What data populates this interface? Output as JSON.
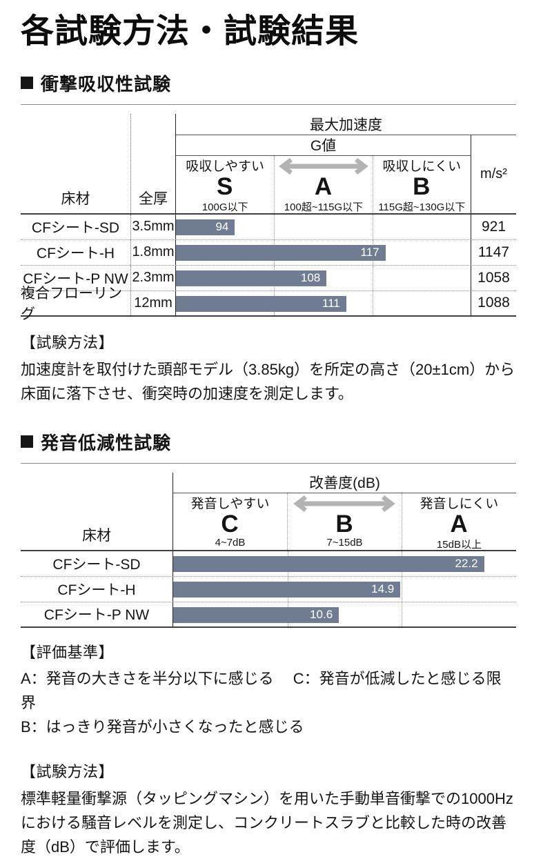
{
  "page": {
    "title": "各試験方法・試験結果"
  },
  "colors": {
    "bar": "#6f7c92",
    "arrow": "#b3b3b3",
    "thick_border": "#3d3d3d"
  },
  "impact": {
    "heading": "衝撃吸収性試験",
    "table": {
      "material_col": "床材",
      "thickness_col": "全厚",
      "group": "最大加速度",
      "subgroup": "G値",
      "unit": "m/s²",
      "zones": [
        {
          "desc": "吸収しやすい",
          "grade": "S",
          "range": "100G以下"
        },
        {
          "desc": "",
          "grade": "A",
          "range": "100超~115G以下"
        },
        {
          "desc": "吸収しにくい",
          "grade": "B",
          "range": "115G超~130G以下"
        }
      ],
      "rows": [
        {
          "material": "CFシート-SD",
          "thickness": "3.5mm",
          "value": 94,
          "ms2": "921"
        },
        {
          "material": "CFシート-H",
          "thickness": "1.8mm",
          "value": 117,
          "ms2": "1147"
        },
        {
          "material": "CFシート-P NW",
          "thickness": "2.3mm",
          "value": 108,
          "ms2": "1058"
        },
        {
          "material": "複合フローリング",
          "thickness": "12mm",
          "value": 111,
          "ms2": "1088"
        }
      ]
    },
    "method_label": "【試験方法】",
    "method_text": "加速度計を取付けた頭部モデル（3.85kg）を所定の高さ（20±1cm）から床面に落下させ、衝突時の加速度を測定します。"
  },
  "sound": {
    "heading": "発音低減性試験",
    "table": {
      "material_col": "床材",
      "group": "改善度(dB)",
      "zones": [
        {
          "desc": "発音しやすい",
          "grade": "C",
          "range": "4~7dB"
        },
        {
          "desc": "",
          "grade": "B",
          "range": "7~15dB"
        },
        {
          "desc": "発音しにくい",
          "grade": "A",
          "range": "15dB以上"
        }
      ],
      "rows": [
        {
          "material": "CFシート-SD",
          "value": 22.2
        },
        {
          "material": "CFシート-H",
          "value": 14.9
        },
        {
          "material": "CFシート-P NW",
          "value": 10.6
        }
      ]
    },
    "criteria_label": "【評価基準】",
    "criteria_lines": [
      "A：発音の大きさを半分以下に感じる　 C：発音が低減したと感じる限界",
      "B：はっきり発音が小さくなったと感じる"
    ],
    "method_label": "【試験方法】",
    "method_text": "標準軽量衝撃源（タッピングマシン）を用いた手動単音衝撃での1000Hzにおける騒音レベルを測定し、コンクリートスラブと比較した時の改善度（dB）で評価します。"
  },
  "chart_data": [
    {
      "type": "bar",
      "title": "衝撃吸収性試験 最大加速度（G値）",
      "categories": [
        "CFシート-SD",
        "CFシート-H",
        "CFシート-P NW",
        "複合フローリング"
      ],
      "values": [
        94,
        117,
        108,
        111
      ],
      "secondary": {
        "label": "m/s²",
        "values": [
          921,
          1147,
          1058,
          1088
        ]
      },
      "thickness": [
        "3.5mm",
        "1.8mm",
        "2.3mm",
        "12mm"
      ],
      "xlabel": "G値",
      "ylabel": "床材",
      "axis_segments": [
        [
          85,
          100
        ],
        [
          100,
          115
        ],
        [
          115,
          130
        ]
      ],
      "zones": [
        "S：100G以下（吸収しやすい）",
        "A：100超~115G以下",
        "B：115G超~130G以下（吸収しにくい）"
      ],
      "legend_position": "none",
      "grid": "zone-dividers"
    },
    {
      "type": "bar",
      "title": "発音低減性試験 改善度(dB)",
      "categories": [
        "CFシート-SD",
        "CFシート-H",
        "CFシート-P NW"
      ],
      "values": [
        22.2,
        14.9,
        10.6
      ],
      "xlabel": "改善度(dB)",
      "ylabel": "床材",
      "axis_segments": [
        [
          4,
          7
        ],
        [
          7,
          15
        ],
        [
          15,
          25
        ]
      ],
      "zones": [
        "C：4~7dB（発音しやすい）",
        "B：7~15dB",
        "A：15dB以上（発音しにくい）"
      ],
      "legend_position": "none",
      "grid": "zone-dividers"
    }
  ]
}
